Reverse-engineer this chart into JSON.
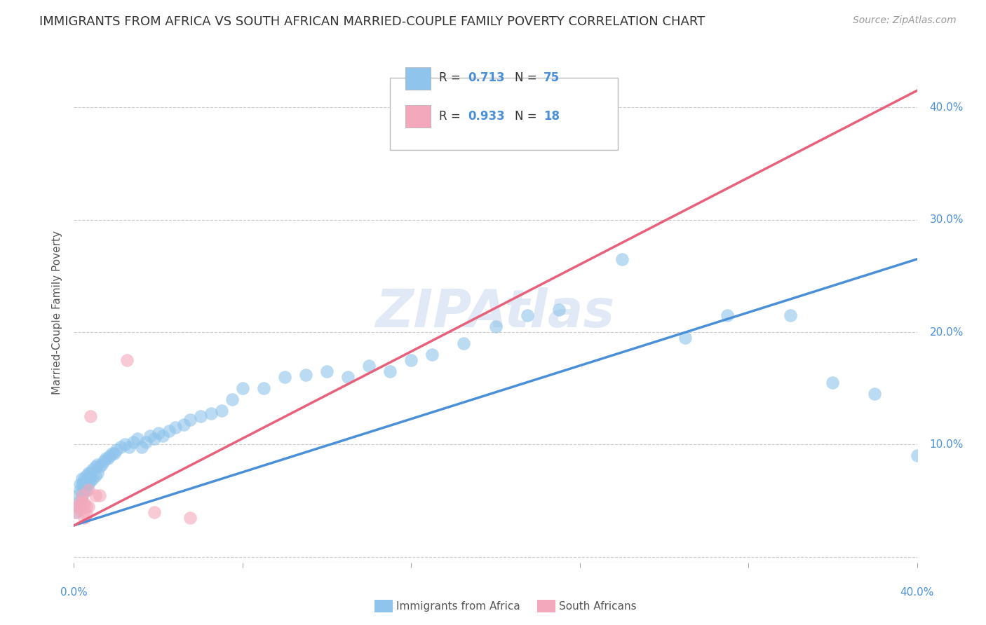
{
  "title": "IMMIGRANTS FROM AFRICA VS SOUTH AFRICAN MARRIED-COUPLE FAMILY POVERTY CORRELATION CHART",
  "source": "Source: ZipAtlas.com",
  "ylabel": "Married-Couple Family Poverty",
  "xlim": [
    0.0,
    0.4
  ],
  "ylim": [
    -0.005,
    0.44
  ],
  "watermark": "ZIPAtlas",
  "legend1_r": "0.713",
  "legend1_n": "75",
  "legend2_r": "0.933",
  "legend2_n": "18",
  "scatter1_color": "#8FC4EC",
  "scatter2_color": "#F4A8BB",
  "line1_color": "#4A90D9",
  "line2_color": "#E8607A",
  "title_color": "#333333",
  "source_color": "#999999",
  "grid_color": "#CCCCCC",
  "background_color": "#FFFFFF",
  "scatter1_x": [
    0.001,
    0.002,
    0.002,
    0.003,
    0.003,
    0.003,
    0.004,
    0.004,
    0.004,
    0.005,
    0.005,
    0.005,
    0.006,
    0.006,
    0.006,
    0.007,
    0.007,
    0.007,
    0.008,
    0.008,
    0.009,
    0.009,
    0.01,
    0.01,
    0.011,
    0.011,
    0.012,
    0.013,
    0.014,
    0.015,
    0.016,
    0.017,
    0.018,
    0.019,
    0.02,
    0.022,
    0.024,
    0.026,
    0.028,
    0.03,
    0.032,
    0.034,
    0.036,
    0.038,
    0.04,
    0.042,
    0.045,
    0.048,
    0.052,
    0.055,
    0.06,
    0.065,
    0.07,
    0.075,
    0.08,
    0.09,
    0.1,
    0.11,
    0.12,
    0.13,
    0.14,
    0.15,
    0.16,
    0.17,
    0.185,
    0.2,
    0.215,
    0.23,
    0.26,
    0.29,
    0.31,
    0.34,
    0.36,
    0.38,
    0.4
  ],
  "scatter1_y": [
    0.04,
    0.045,
    0.055,
    0.05,
    0.06,
    0.065,
    0.055,
    0.065,
    0.07,
    0.06,
    0.065,
    0.07,
    0.06,
    0.065,
    0.072,
    0.065,
    0.07,
    0.075,
    0.068,
    0.075,
    0.07,
    0.078,
    0.072,
    0.08,
    0.075,
    0.082,
    0.08,
    0.082,
    0.085,
    0.088,
    0.088,
    0.09,
    0.092,
    0.092,
    0.095,
    0.098,
    0.1,
    0.098,
    0.102,
    0.105,
    0.098,
    0.102,
    0.108,
    0.105,
    0.11,
    0.108,
    0.112,
    0.115,
    0.118,
    0.122,
    0.125,
    0.128,
    0.13,
    0.14,
    0.15,
    0.15,
    0.16,
    0.162,
    0.165,
    0.16,
    0.17,
    0.165,
    0.175,
    0.18,
    0.19,
    0.205,
    0.215,
    0.22,
    0.265,
    0.195,
    0.215,
    0.215,
    0.155,
    0.145,
    0.09
  ],
  "scatter2_x": [
    0.001,
    0.002,
    0.003,
    0.003,
    0.004,
    0.004,
    0.005,
    0.005,
    0.006,
    0.006,
    0.007,
    0.007,
    0.008,
    0.01,
    0.012,
    0.025,
    0.038,
    0.055
  ],
  "scatter2_y": [
    0.04,
    0.045,
    0.042,
    0.048,
    0.05,
    0.055,
    0.048,
    0.035,
    0.038,
    0.045,
    0.06,
    0.045,
    0.125,
    0.055,
    0.055,
    0.175,
    0.04,
    0.035
  ],
  "line1_x": [
    0.0,
    0.4
  ],
  "line1_y": [
    0.028,
    0.265
  ],
  "line2_x": [
    0.0,
    0.4
  ],
  "line2_y": [
    0.028,
    0.415
  ]
}
